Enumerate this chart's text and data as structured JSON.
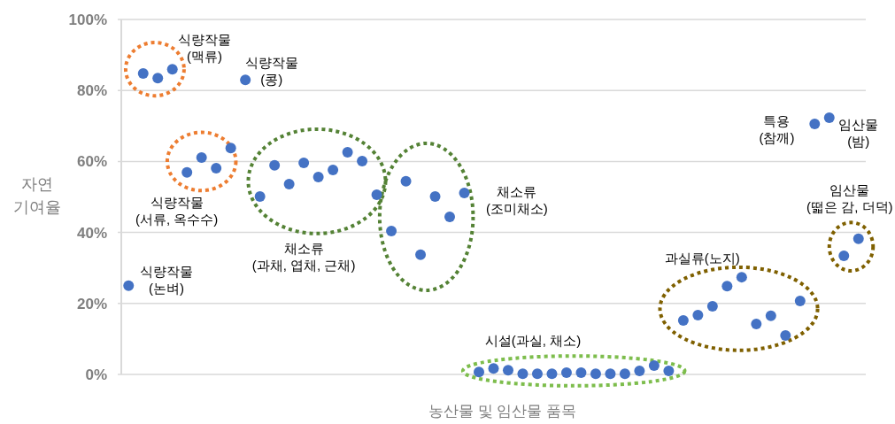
{
  "chart_data": {
    "type": "scatter",
    "xlabel": "농산물 및 임산물 품목",
    "ylabel": "자연\n기여율",
    "categories": [
      null,
      null,
      null,
      null,
      null,
      null,
      null,
      null,
      null,
      null,
      null,
      null,
      null,
      null,
      null,
      null,
      null,
      null,
      null,
      null,
      null,
      null,
      null,
      null,
      null,
      null,
      null,
      null,
      null,
      null,
      null,
      null,
      null,
      null,
      null,
      null,
      null,
      null,
      null,
      null,
      null,
      null,
      null,
      null,
      null,
      null,
      null,
      null,
      null,
      null,
      null
    ],
    "series": [
      {
        "color": "#4472c4",
        "values": [
          25,
          84.8,
          83.5,
          86,
          56.9,
          61.1,
          58.1,
          63.8,
          83,
          50.1,
          58.9,
          53.6,
          59.6,
          55.6,
          57.6,
          62.6,
          60.1,
          50.6,
          40.4,
          54.4,
          33.7,
          50.1,
          44.4,
          51.1,
          0.7,
          1.7,
          1.2,
          0.2,
          0.2,
          0.2,
          0.5,
          0.5,
          0.2,
          0.2,
          0.2,
          1,
          2.5,
          1,
          15.2,
          16.7,
          19.2,
          24.9,
          27.4,
          14.2,
          16.5,
          11,
          20.7,
          70.6,
          72.3,
          33.4,
          38.2
        ]
      }
    ],
    "ylim": [
      0,
      100
    ],
    "yticks": [
      {
        "value": 0,
        "label": "0%"
      },
      {
        "value": 20,
        "label": "20%"
      },
      {
        "value": 40,
        "label": "40%"
      },
      {
        "value": 60,
        "label": "60%"
      },
      {
        "value": 80,
        "label": "80%"
      },
      {
        "value": 100,
        "label": "100%"
      }
    ],
    "grid": "y",
    "marker": "circle",
    "tick_labels": "y",
    "annotations": [
      "식량작물\n(맥류)",
      "식량작물\n(콩)",
      "식량작물\n(서류, 옥수수)",
      "채소류\n(과채, 엽채, 근채)",
      "식량작물\n(논벼)",
      "채소류\n(조미채소)",
      "시설(과실, 채소)",
      "과실류(노지)",
      "특용\n(참깨)",
      "임산물\n(밤)",
      "임산물\n(떫은 감, 더덕)"
    ]
  }
}
